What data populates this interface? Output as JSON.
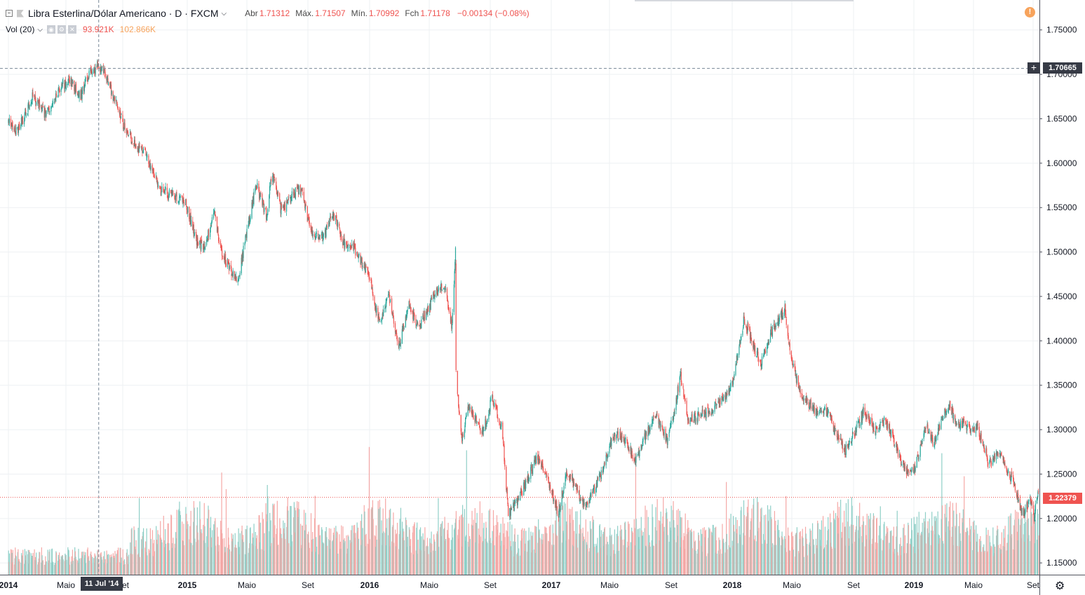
{
  "legend": {
    "symbol_title": "Libra Esterlina/Dólar Americano · D · FXCM",
    "open_label": "Abr",
    "open_value": "1.71312",
    "high_label": "Máx.",
    "high_value": "1.71507",
    "low_label": "Mín.",
    "low_value": "1.70992",
    "close_label": "Fch",
    "close_value": "1.71178",
    "change": "−0.00134 (−0.08%)"
  },
  "volume_legend": {
    "label": "Vol (20)",
    "value1": "93.921K",
    "value2": "102.866K"
  },
  "crosshair": {
    "price": "1.70665",
    "date": "11 Jul '14"
  },
  "last_price": {
    "value": "1.22379"
  },
  "icons": {
    "warning": "!",
    "settings": "⚙"
  },
  "colors": {
    "up": "#26a69a",
    "down": "#ef5350",
    "vol_up": "#8fcfc7",
    "vol_down": "#f5a8a6",
    "grid": "#eef0f3",
    "axis_text": "#131722"
  },
  "chart_data": {
    "type": "candlestick",
    "symbol": "Libra Esterlina/Dólar Americano",
    "interval": "D",
    "source": "FXCM",
    "ylim": [
      1.13,
      1.77
    ],
    "y_ticks": [
      "1.75000",
      "1.70000",
      "1.65000",
      "1.60000",
      "1.55000",
      "1.50000",
      "1.45000",
      "1.40000",
      "1.35000",
      "1.30000",
      "1.25000",
      "1.20000",
      "1.15000"
    ],
    "x_ticks": [
      "2014",
      "Maio",
      "Set",
      "2015",
      "Maio",
      "Set",
      "2016",
      "Maio",
      "Set",
      "2017",
      "Maio",
      "Set",
      "2018",
      "Maio",
      "Set",
      "2019",
      "Maio",
      "Set"
    ],
    "x_tick_dates": [
      "2014-01-01",
      "2014-05-01",
      "2014-09-01",
      "2015-01-01",
      "2015-05-01",
      "2015-09-01",
      "2016-01-01",
      "2016-05-01",
      "2016-09-01",
      "2017-01-01",
      "2017-05-01",
      "2017-09-01",
      "2018-01-01",
      "2018-05-01",
      "2018-09-01",
      "2019-01-01",
      "2019-05-01",
      "2019-09-01"
    ],
    "price_path": [
      [
        "2014-01-01",
        1.645
      ],
      [
        "2014-01-20",
        1.635
      ],
      [
        "2014-02-20",
        1.675
      ],
      [
        "2014-03-20",
        1.655
      ],
      [
        "2014-04-20",
        1.685
      ],
      [
        "2014-05-10",
        1.695
      ],
      [
        "2014-06-01",
        1.675
      ],
      [
        "2014-06-20",
        1.7
      ],
      [
        "2014-07-11",
        1.712
      ],
      [
        "2014-07-25",
        1.7
      ],
      [
        "2014-08-15",
        1.67
      ],
      [
        "2014-09-05",
        1.64
      ],
      [
        "2014-09-25",
        1.62
      ],
      [
        "2014-10-15",
        1.61
      ],
      [
        "2014-11-10",
        1.57
      ],
      [
        "2014-12-05",
        1.565
      ],
      [
        "2014-12-30",
        1.555
      ],
      [
        "2015-01-20",
        1.51
      ],
      [
        "2015-02-05",
        1.505
      ],
      [
        "2015-02-25",
        1.545
      ],
      [
        "2015-03-10",
        1.5
      ],
      [
        "2015-04-13",
        1.465
      ],
      [
        "2015-05-01",
        1.525
      ],
      [
        "2015-05-20",
        1.575
      ],
      [
        "2015-06-10",
        1.54
      ],
      [
        "2015-06-20",
        1.59
      ],
      [
        "2015-07-10",
        1.545
      ],
      [
        "2015-08-01",
        1.565
      ],
      [
        "2015-08-20",
        1.57
      ],
      [
        "2015-09-05",
        1.525
      ],
      [
        "2015-10-01",
        1.515
      ],
      [
        "2015-10-20",
        1.545
      ],
      [
        "2015-11-10",
        1.51
      ],
      [
        "2015-12-01",
        1.505
      ],
      [
        "2015-12-30",
        1.475
      ],
      [
        "2016-01-20",
        1.42
      ],
      [
        "2016-02-10",
        1.45
      ],
      [
        "2016-02-29",
        1.39
      ],
      [
        "2016-03-20",
        1.44
      ],
      [
        "2016-04-10",
        1.415
      ],
      [
        "2016-05-10",
        1.45
      ],
      [
        "2016-06-01",
        1.465
      ],
      [
        "2016-06-16",
        1.415
      ],
      [
        "2016-06-23",
        1.5
      ],
      [
        "2016-06-24",
        1.36
      ],
      [
        "2016-07-06",
        1.29
      ],
      [
        "2016-07-20",
        1.325
      ],
      [
        "2016-08-15",
        1.295
      ],
      [
        "2016-09-05",
        1.335
      ],
      [
        "2016-09-25",
        1.3
      ],
      [
        "2016-10-07",
        1.205
      ],
      [
        "2016-10-25",
        1.22
      ],
      [
        "2016-11-15",
        1.245
      ],
      [
        "2016-12-05",
        1.27
      ],
      [
        "2016-12-30",
        1.235
      ],
      [
        "2017-01-16",
        1.205
      ],
      [
        "2017-02-01",
        1.255
      ],
      [
        "2017-03-01",
        1.225
      ],
      [
        "2017-03-14",
        1.215
      ],
      [
        "2017-04-10",
        1.245
      ],
      [
        "2017-05-10",
        1.295
      ],
      [
        "2017-06-01",
        1.29
      ],
      [
        "2017-06-20",
        1.265
      ],
      [
        "2017-07-10",
        1.29
      ],
      [
        "2017-08-01",
        1.32
      ],
      [
        "2017-08-25",
        1.285
      ],
      [
        "2017-09-20",
        1.36
      ],
      [
        "2017-10-05",
        1.31
      ],
      [
        "2017-10-25",
        1.315
      ],
      [
        "2017-11-15",
        1.32
      ],
      [
        "2017-12-15",
        1.335
      ],
      [
        "2018-01-01",
        1.35
      ],
      [
        "2018-01-25",
        1.425
      ],
      [
        "2018-02-15",
        1.39
      ],
      [
        "2018-03-01",
        1.375
      ],
      [
        "2018-03-20",
        1.41
      ],
      [
        "2018-04-17",
        1.435
      ],
      [
        "2018-05-01",
        1.375
      ],
      [
        "2018-05-20",
        1.34
      ],
      [
        "2018-06-20",
        1.32
      ],
      [
        "2018-07-10",
        1.32
      ],
      [
        "2018-08-15",
        1.275
      ],
      [
        "2018-09-10",
        1.305
      ],
      [
        "2018-09-21",
        1.32
      ],
      [
        "2018-10-15",
        1.3
      ],
      [
        "2018-11-05",
        1.31
      ],
      [
        "2018-11-30",
        1.275
      ],
      [
        "2018-12-12",
        1.255
      ],
      [
        "2019-01-03",
        1.255
      ],
      [
        "2019-01-25",
        1.305
      ],
      [
        "2019-02-10",
        1.285
      ],
      [
        "2019-03-12",
        1.33
      ],
      [
        "2019-03-25",
        1.31
      ],
      [
        "2019-04-15",
        1.305
      ],
      [
        "2019-05-10",
        1.3
      ],
      [
        "2019-06-01",
        1.265
      ],
      [
        "2019-06-25",
        1.27
      ],
      [
        "2019-07-20",
        1.245
      ],
      [
        "2019-08-10",
        1.205
      ],
      [
        "2019-08-28",
        1.22
      ],
      [
        "2019-09-03",
        1.2
      ],
      [
        "2019-09-12",
        1.235
      ]
    ],
    "crosshair": {
      "date": "2014-07-11",
      "price": 1.70665
    },
    "last_price": 1.22379,
    "volume": {
      "type": "bar",
      "label": "Vol (20)",
      "level_markers": [
        "93.921K",
        "102.866K"
      ]
    },
    "grid": true,
    "price_axis": "right",
    "time_axis": "bottom"
  }
}
